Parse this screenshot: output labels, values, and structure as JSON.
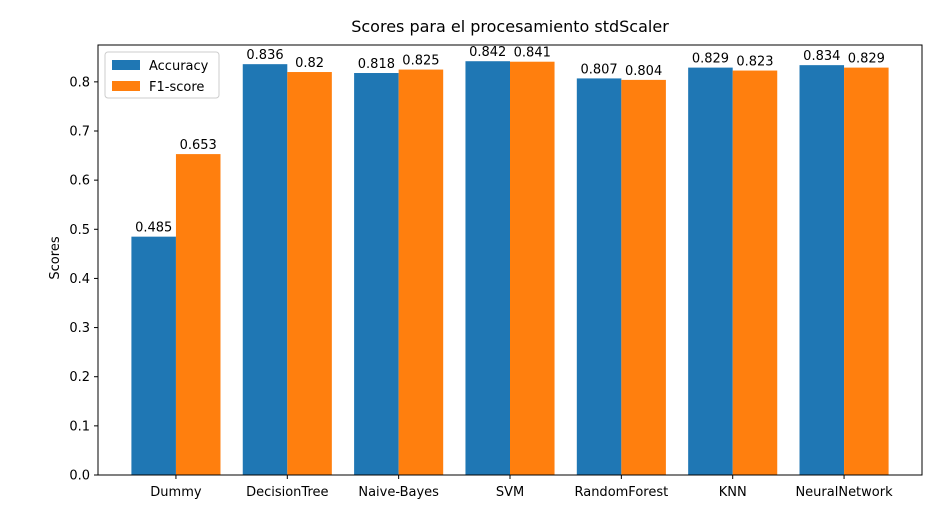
{
  "chart_data": {
    "type": "bar",
    "title": "Scores para el procesamiento stdScaler",
    "xlabel": "",
    "ylabel": "Scores",
    "ylim": [
      0,
      0.875
    ],
    "yticks": [
      "0.0",
      "0.1",
      "0.2",
      "0.3",
      "0.4",
      "0.5",
      "0.6",
      "0.7",
      "0.8"
    ],
    "categories": [
      "Dummy",
      "DecisionTree",
      "Naive-Bayes",
      "SVM",
      "RandomForest",
      "KNN",
      "NeuralNetwork"
    ],
    "series": [
      {
        "name": "Accuracy",
        "color": "#1f77b4",
        "values": [
          0.485,
          0.836,
          0.818,
          0.842,
          0.807,
          0.829,
          0.834
        ],
        "labels": [
          "0.485",
          "0.836",
          "0.818",
          "0.842",
          "0.807",
          "0.829",
          "0.834"
        ]
      },
      {
        "name": "F1-score",
        "color": "#ff7f0e",
        "values": [
          0.653,
          0.82,
          0.825,
          0.841,
          0.804,
          0.823,
          0.829
        ],
        "labels": [
          "0.653",
          "0.82",
          "0.825",
          "0.841",
          "0.804",
          "0.823",
          "0.829"
        ]
      }
    ],
    "legend": "top-left",
    "grid": false
  }
}
